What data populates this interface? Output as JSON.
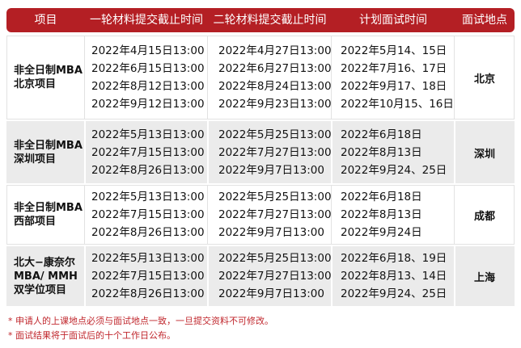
{
  "table": {
    "headers": [
      "项目",
      "一轮材料提交截止时间",
      "二轮材料提交截止时间",
      "计划面试时间",
      "面试地点"
    ],
    "rows": [
      {
        "project": [
          "非全日制MBA",
          "北京项目"
        ],
        "round1": [
          "2022年4月15日13:00",
          "2022年6月15日13:00",
          "2022年8月12日13:00",
          "2022年9月12日13:00"
        ],
        "round2": [
          "2022年4月27日13:00",
          "2022年6月27日13:00",
          "2022年8月24日13:00",
          "2022年9月23日13:00"
        ],
        "interview": [
          "2022年5月14、15日",
          "2022年7月16、17日",
          "2022年9月17、18日",
          "2022年10月15、16日"
        ],
        "location": "北京"
      },
      {
        "project": [
          "非全日制MBA",
          "深圳项目"
        ],
        "round1": [
          "2022年5月13日13:00",
          "2022年7月15日13:00",
          "2022年8月26日13:00"
        ],
        "round2": [
          "2022年5月25日13:00",
          "2022年7月27日13:00",
          "2022年9月7日13:00"
        ],
        "interview": [
          "2022年6月18日",
          "2022年8月13日",
          "2022年9月24、25日"
        ],
        "location": "深圳"
      },
      {
        "project": [
          "非全日制MBA",
          "西部项目"
        ],
        "round1": [
          "2022年5月13日13:00",
          "2022年7月15日13:00",
          "2022年8月26日13:00"
        ],
        "round2": [
          "2022年5月25日13:00",
          "2022年7月27日13:00",
          "2022年9月7日13:00"
        ],
        "interview": [
          "2022年6月18日",
          "2022年8月13日",
          "2022年9月24日"
        ],
        "location": "成都"
      },
      {
        "project": [
          "北大−康奈尔",
          "MBA/ MMH",
          "双学位项目"
        ],
        "round1": [
          "2022年5月13日13:00",
          "2022年7月15日13:00",
          "2022年8月26日13:00"
        ],
        "round2": [
          "2022年5月25日13:00",
          "2022年7月27日13:00",
          "2022年9月7日13:00"
        ],
        "interview": [
          "2022年6月18、19日",
          "2022年8月13、14日",
          "2022年9月24、25日"
        ],
        "location": "上海"
      }
    ]
  },
  "footnotes": [
    "* 申请人的上课地点必须与面试地点一致，一旦提交资料不可修改。",
    "* 面试结果将于面试后的十个工作日公布。"
  ]
}
